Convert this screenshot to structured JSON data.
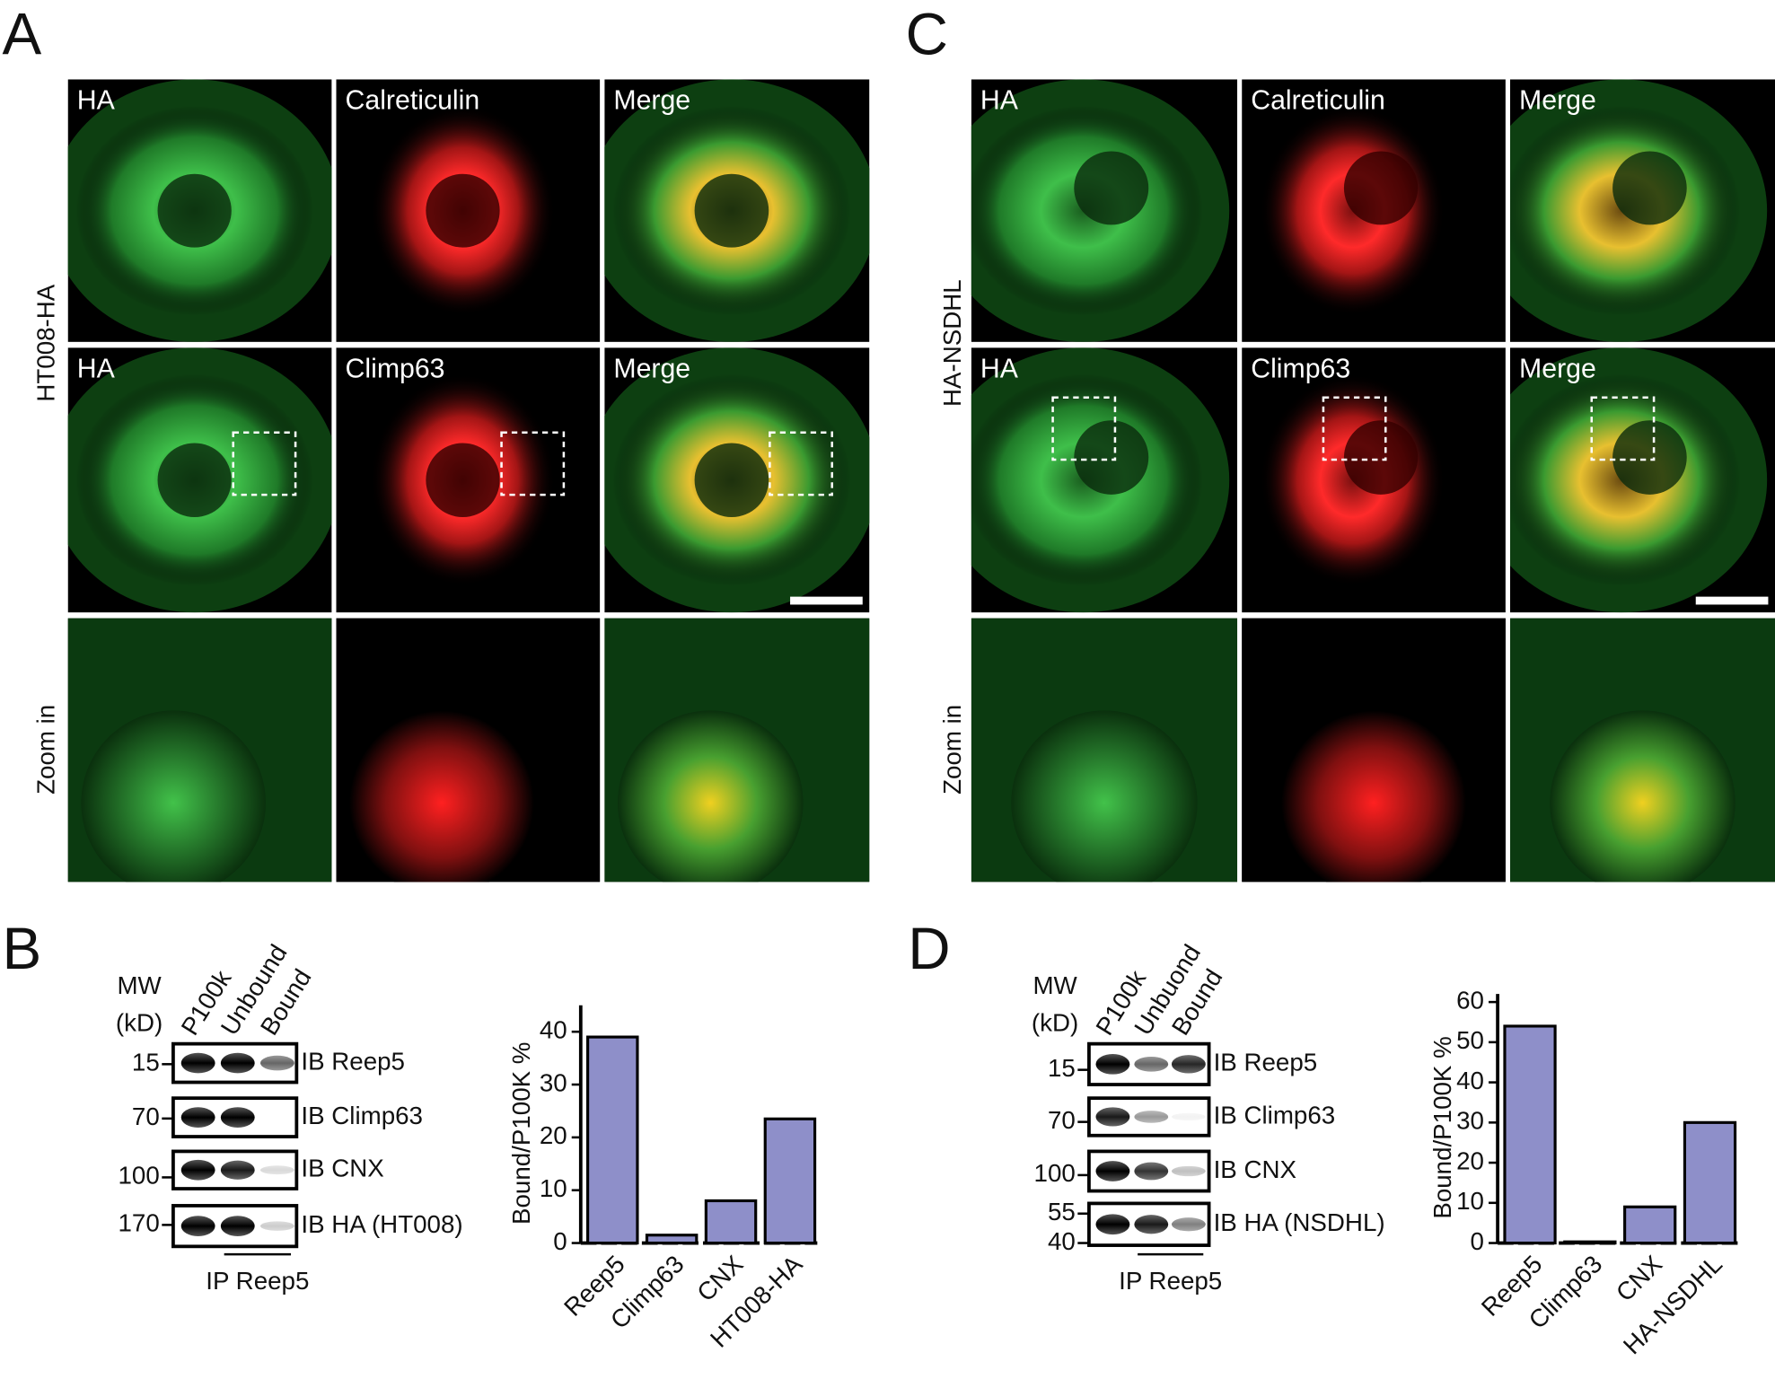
{
  "panels": [
    {
      "letter": "A",
      "side_labels": [
        "HT008-HA",
        "Zoom in"
      ],
      "rows": [
        [
          "HA",
          "Calreticulin",
          "Merge"
        ],
        [
          "HA",
          "Climp63",
          "Merge"
        ]
      ]
    },
    {
      "letter": "C",
      "side_labels": [
        "HA-NSDHL",
        "Zoom in"
      ],
      "rows": [
        [
          "HA",
          "Calreticulin",
          "Merge"
        ],
        [
          "HA",
          "Climp63",
          "Merge"
        ]
      ]
    }
  ],
  "blots": [
    {
      "letter": "B",
      "mw": "MW",
      "kd": "(kD)",
      "lanes": [
        "P100k",
        "Unbound",
        "Bound"
      ],
      "rows": [
        {
          "markers": [
            "15"
          ],
          "label": "IB Reep5"
        },
        {
          "markers": [
            "70"
          ],
          "label": "IB Climp63"
        },
        {
          "markers": [
            "100"
          ],
          "label": "IB CNX"
        },
        {
          "markers": [
            "170"
          ],
          "label": "IB HA (HT008)"
        }
      ],
      "ip": "IP Reep5"
    },
    {
      "letter": "D",
      "mw": "MW",
      "kd": "(kD)",
      "lanes": [
        "P100k",
        "Unbuond",
        "Bound"
      ],
      "rows": [
        {
          "markers": [
            "15"
          ],
          "label": "IB Reep5"
        },
        {
          "markers": [
            "70"
          ],
          "label": "IB Climp63"
        },
        {
          "markers": [
            "100"
          ],
          "label": "IB CNX"
        },
        {
          "markers": [
            "55",
            "40"
          ],
          "label": "IB HA (NSDHL)"
        }
      ],
      "ip": "IP Reep5"
    }
  ],
  "chart_data": [
    {
      "type": "bar",
      "ylabel": "Bound/P100K %",
      "categories": [
        "Reep5",
        "Climp63",
        "CNX",
        "HT008-HA"
      ],
      "values": [
        39,
        1.5,
        8,
        23.5
      ],
      "color": "#8e8fc9",
      "ylim": [
        0,
        45
      ],
      "yticks": [
        0,
        10,
        20,
        30,
        40
      ]
    },
    {
      "type": "bar",
      "ylabel": "Bound/P100K %",
      "categories": [
        "Reep5",
        "Climp63",
        "CNX",
        "HA-NSDHL"
      ],
      "values": [
        54,
        0.3,
        9,
        30
      ],
      "color": "#8e8fc9",
      "ylim": [
        0,
        62
      ],
      "yticks": [
        0,
        10,
        20,
        30,
        40,
        50,
        60
      ]
    }
  ]
}
